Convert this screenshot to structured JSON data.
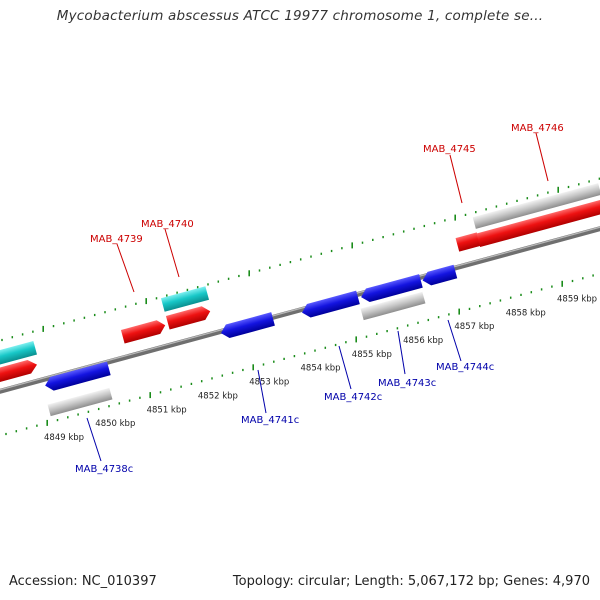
{
  "title": "Mycobacterium abscessus ATCC 19977 chromosome 1, complete se...",
  "colors": {
    "forward": "#dd0000",
    "reverse": "#0000cc",
    "rna_cyan": "#10c0c0",
    "gray": "#bdbdbd",
    "ticks": "#1a8c1a",
    "backbone": "#888888"
  },
  "ticks": {
    "lower": [
      "4849 kbp",
      "4850 kbp",
      "4851 kbp",
      "4852 kbp",
      "4853 kbp",
      "4854 kbp",
      "4855 kbp",
      "4856 kbp",
      "4857 kbp",
      "4858 kbp",
      "4859 kbp"
    ]
  },
  "genes": {
    "top": [
      "MAB_4739",
      "MAB_4740",
      "MAB_4745",
      "MAB_4746"
    ],
    "bottom": [
      "MAB_4738c",
      "MAB_4741c",
      "MAB_4742c",
      "MAB_4743c",
      "MAB_4744c"
    ]
  },
  "footer": {
    "accession": "Accession: NC_010397",
    "summary": "Topology: circular; Length: 5,067,172 bp; Genes: 4,970"
  }
}
